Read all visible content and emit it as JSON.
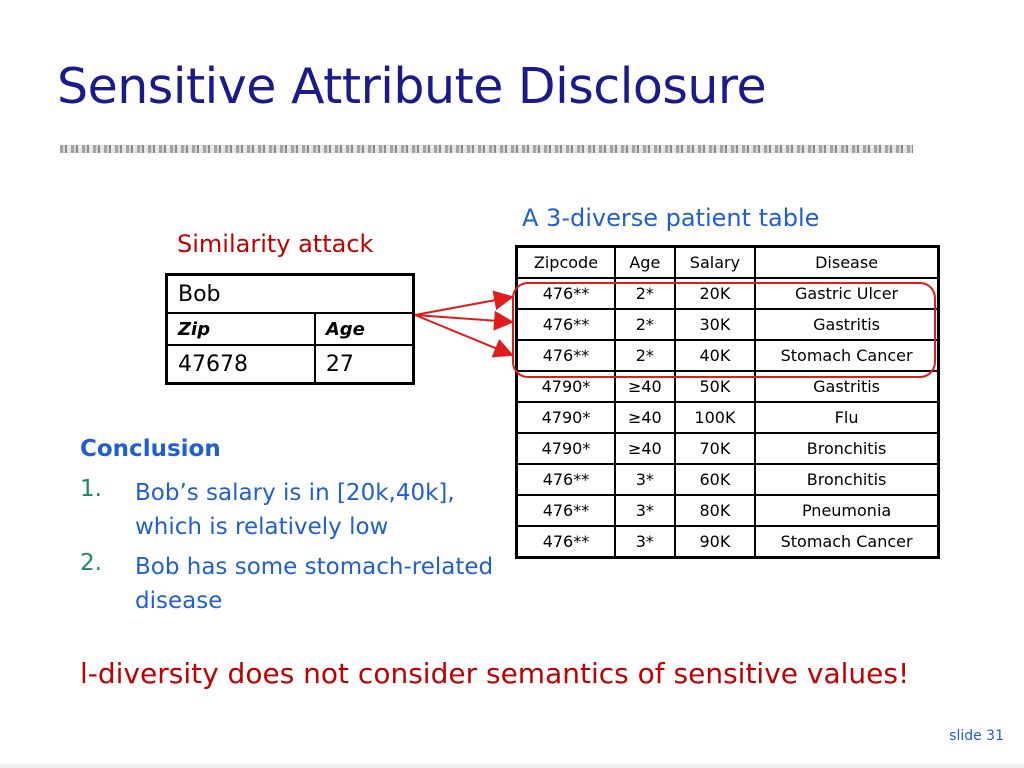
{
  "slide": {
    "title": "Sensitive Attribute Disclosure",
    "left_caption": "Similarity attack",
    "right_caption": "A 3-diverse patient table",
    "bob_table": {
      "name": "Bob",
      "headers": [
        "Zip",
        "Age"
      ],
      "values": [
        "47678",
        "27"
      ]
    },
    "patient_table": {
      "headers": [
        "Zipcode",
        "Age",
        "Salary",
        "Disease"
      ],
      "rows": [
        [
          "476**",
          "2*",
          "20K",
          "Gastric Ulcer"
        ],
        [
          "476**",
          "2*",
          "30K",
          "Gastritis"
        ],
        [
          "476**",
          "2*",
          "40K",
          "Stomach Cancer"
        ],
        [
          "4790*",
          "≥40",
          "50K",
          "Gastritis"
        ],
        [
          "4790*",
          "≥40",
          "100K",
          "Flu"
        ],
        [
          "4790*",
          "≥40",
          "70K",
          "Bronchitis"
        ],
        [
          "476**",
          "3*",
          "60K",
          "Bronchitis"
        ],
        [
          "476**",
          "3*",
          "80K",
          "Pneumonia"
        ],
        [
          "476**",
          "3*",
          "90K",
          "Stomach Cancer"
        ]
      ]
    },
    "conclusion": {
      "heading": "Conclusion",
      "items": [
        {
          "num": "1.",
          "text": "Bob’s salary is in [20k,40k], which is relatively low"
        },
        {
          "num": "2.",
          "text": "Bob has some stomach-related disease"
        }
      ]
    },
    "bottom_note": "l-diversity does not consider semantics of sensitive values!",
    "slide_number": "slide 31",
    "colors": {
      "title": "#1a1a8c",
      "red": "#c00000",
      "blue": "#1f5fd1",
      "number_green": "#1a8a5a",
      "highlight": "#e01c1c"
    }
  }
}
